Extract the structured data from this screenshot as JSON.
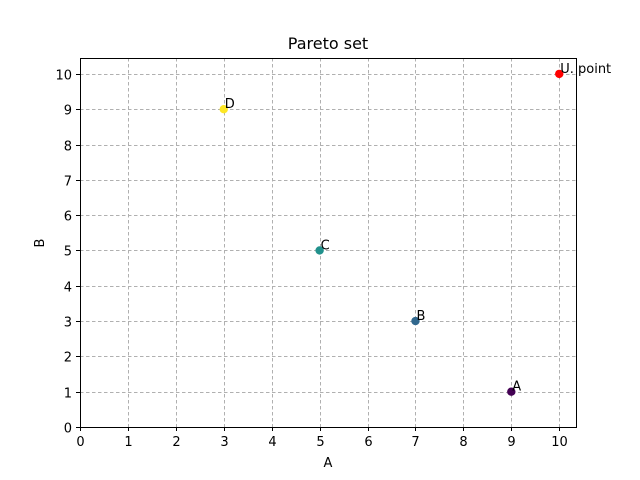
{
  "chart_data": {
    "type": "scatter",
    "title": "Pareto set",
    "xlabel": "A",
    "ylabel": "B",
    "xlim": [
      0,
      10.35
    ],
    "ylim": [
      0,
      10.45
    ],
    "xticks": [
      0,
      1,
      2,
      3,
      4,
      5,
      6,
      7,
      8,
      9,
      10
    ],
    "yticks": [
      0,
      1,
      2,
      3,
      4,
      5,
      6,
      7,
      8,
      9,
      10
    ],
    "grid": true,
    "points": [
      {
        "label": "A",
        "x": 9,
        "y": 1,
        "color": "#440154"
      },
      {
        "label": "B",
        "x": 7,
        "y": 3,
        "color": "#31688e"
      },
      {
        "label": "C",
        "x": 5,
        "y": 5,
        "color": "#21918c"
      },
      {
        "label": "D",
        "x": 3,
        "y": 9,
        "color": "#fde725"
      },
      {
        "label": "U. point",
        "x": 10,
        "y": 10,
        "color": "#ff0000"
      }
    ]
  }
}
